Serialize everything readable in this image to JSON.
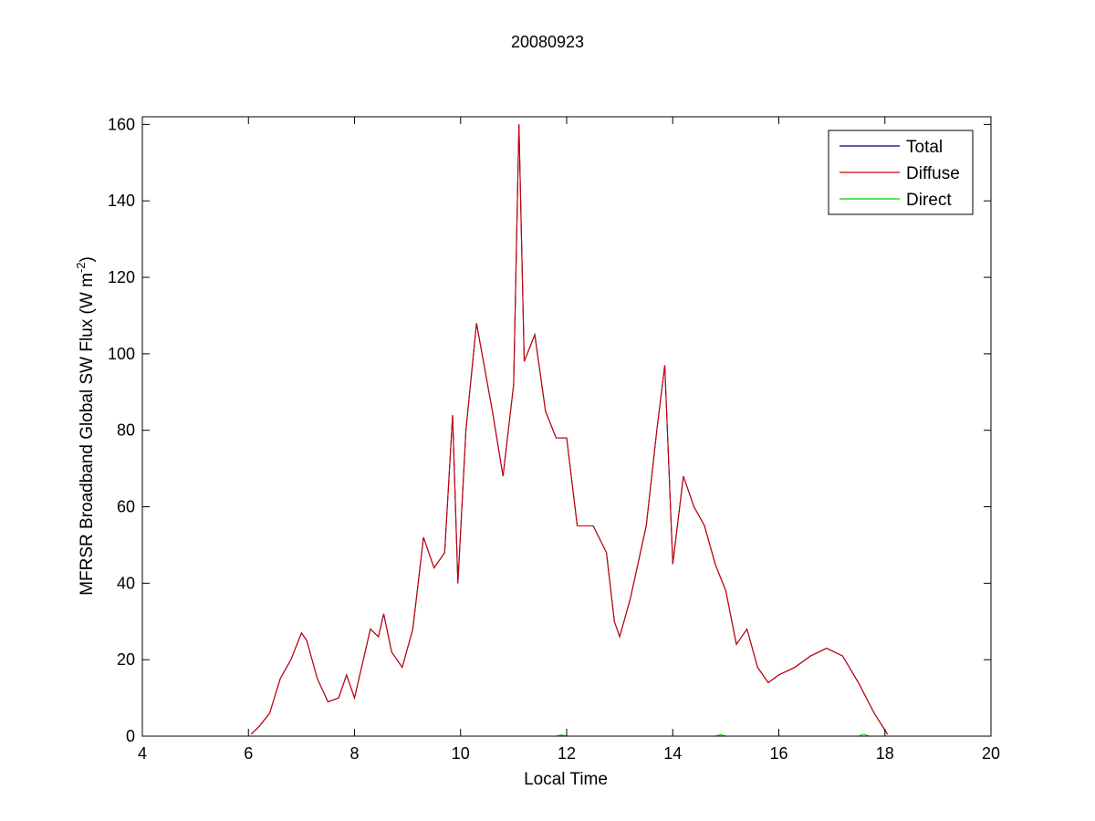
{
  "chart_data": {
    "type": "line",
    "title": "20080923",
    "xlabel": "Local Time",
    "ylabel_main": "MFRSR Broadband Global SW Flux (W m",
    "ylabel_sup": "-2",
    "ylabel_close": ")",
    "xlim": [
      4,
      20
    ],
    "ylim": [
      0,
      162
    ],
    "xticks": [
      4,
      6,
      8,
      10,
      12,
      14,
      16,
      18,
      20
    ],
    "yticks": [
      0,
      20,
      40,
      60,
      80,
      100,
      120,
      140,
      160
    ],
    "grid": false,
    "legend_placement": "top-right",
    "series": [
      {
        "name": "Total",
        "color": "#00007f",
        "x": [
          6.05,
          6.2,
          6.4,
          6.6,
          6.8,
          7.0,
          7.1,
          7.3,
          7.5,
          7.7,
          7.85,
          8.0,
          8.3,
          8.45,
          8.55,
          8.7,
          8.9,
          9.1,
          9.3,
          9.5,
          9.7,
          9.85,
          9.95,
          10.1,
          10.3,
          10.6,
          10.8,
          11.0,
          11.1,
          11.2,
          11.4,
          11.6,
          11.8,
          12.0,
          12.2,
          12.5,
          12.75,
          12.9,
          13.0,
          13.2,
          13.5,
          13.7,
          13.85,
          14.0,
          14.2,
          14.4,
          14.6,
          14.8,
          15.0,
          15.2,
          15.4,
          15.6,
          15.8,
          16.0,
          16.3,
          16.6,
          16.9,
          17.2,
          17.5,
          17.8,
          18.05
        ],
        "y": [
          0.5,
          2.5,
          6,
          15,
          20,
          27,
          25,
          15,
          9,
          10,
          16,
          10,
          28,
          26,
          32,
          22,
          18,
          28,
          52,
          44,
          48,
          84,
          40,
          80,
          108,
          85,
          68,
          92,
          160,
          98,
          105,
          85,
          78,
          78,
          55,
          55,
          48,
          30,
          26,
          36,
          55,
          80,
          97,
          45,
          68,
          60,
          55,
          45,
          38,
          24,
          28,
          18,
          14,
          16,
          18,
          21,
          23,
          21,
          14,
          6,
          0.5
        ]
      },
      {
        "name": "Diffuse",
        "color": "#cc0000",
        "x": [
          6.05,
          6.2,
          6.4,
          6.6,
          6.8,
          7.0,
          7.1,
          7.3,
          7.5,
          7.7,
          7.85,
          8.0,
          8.3,
          8.45,
          8.55,
          8.7,
          8.9,
          9.1,
          9.3,
          9.5,
          9.7,
          9.85,
          9.95,
          10.1,
          10.3,
          10.6,
          10.8,
          11.0,
          11.1,
          11.2,
          11.4,
          11.6,
          11.8,
          12.0,
          12.2,
          12.5,
          12.75,
          12.9,
          13.0,
          13.2,
          13.5,
          13.7,
          13.85,
          14.0,
          14.2,
          14.4,
          14.6,
          14.8,
          15.0,
          15.2,
          15.4,
          15.6,
          15.8,
          16.0,
          16.3,
          16.6,
          16.9,
          17.2,
          17.5,
          17.8,
          18.05
        ],
        "y": [
          0.5,
          2.5,
          6,
          15,
          20,
          27,
          25,
          15,
          9,
          10,
          16,
          10,
          28,
          26,
          32,
          22,
          18,
          28,
          52,
          44,
          48,
          84,
          40,
          80,
          108,
          85,
          68,
          92,
          160,
          98,
          105,
          85,
          78,
          78,
          55,
          55,
          48,
          30,
          26,
          36,
          55,
          80,
          97,
          45,
          68,
          60,
          55,
          45,
          38,
          24,
          28,
          18,
          14,
          16,
          18,
          21,
          23,
          21,
          14,
          6,
          0.5
        ]
      },
      {
        "name": "Direct",
        "color": "#00cc00",
        "x": [
          6.05,
          11.8,
          11.9,
          12.0,
          14.8,
          14.9,
          15.0,
          17.5,
          17.6,
          17.7,
          18.05
        ],
        "y": [
          0,
          0,
          0.3,
          0,
          0,
          0.4,
          0,
          0,
          0.5,
          0,
          0
        ]
      }
    ]
  }
}
